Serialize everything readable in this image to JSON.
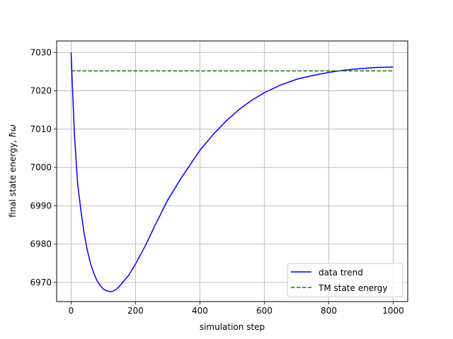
{
  "chart_data": {
    "type": "line",
    "title": "",
    "xlabel": "simulation step",
    "ylabel": "final state energy, ",
    "ylabel_symbol": "ħω",
    "xlim": [
      -45,
      1045
    ],
    "ylim": [
      6965,
      7033
    ],
    "xticks": [
      0,
      200,
      400,
      600,
      800,
      1000
    ],
    "yticks": [
      6970,
      6980,
      6990,
      7000,
      7010,
      7020,
      7030
    ],
    "grid": true,
    "legend_position": "lower right",
    "series": [
      {
        "name": "data trend",
        "color": "#0000ff",
        "style": "solid",
        "x": [
          0,
          5,
          10,
          20,
          30,
          40,
          50,
          60,
          70,
          80,
          90,
          100,
          110,
          120,
          130,
          140,
          150,
          160,
          180,
          200,
          230,
          260,
          300,
          340,
          380,
          400,
          440,
          480,
          520,
          560,
          600,
          650,
          700,
          750,
          800,
          850,
          900,
          950,
          1000
        ],
        "y": [
          7030,
          7019,
          7009,
          6996,
          6989,
          6983,
          6978.5,
          6975,
          6972.5,
          6970.5,
          6969.2,
          6968.3,
          6967.8,
          6967.6,
          6967.7,
          6968.2,
          6969,
          6970,
          6972,
          6974.8,
          6979.5,
          6984.8,
          6991.5,
          6997,
          7002,
          7004.5,
          7008.5,
          7012,
          7015,
          7017.5,
          7019.5,
          7021.5,
          7023,
          7024,
          7024.8,
          7025.4,
          7025.8,
          7026.1,
          7026.2
        ]
      },
      {
        "name": "TM state energy",
        "color": "#008000",
        "style": "dashed",
        "x": [
          0,
          1000
        ],
        "y": [
          7025.2,
          7025.2
        ]
      }
    ]
  }
}
